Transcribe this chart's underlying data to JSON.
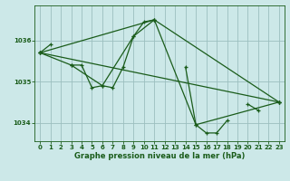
{
  "xlabel": "Graphe pression niveau de la mer (hPa)",
  "background_color": "#cce8e8",
  "grid_color": "#9bbfbf",
  "line_color": "#1a5c1a",
  "ylim": [
    1033.55,
    1036.85
  ],
  "xlim": [
    -0.5,
    23.5
  ],
  "yticks": [
    1034,
    1035,
    1036
  ],
  "xticks": [
    0,
    1,
    2,
    3,
    4,
    5,
    6,
    7,
    8,
    9,
    10,
    11,
    12,
    13,
    14,
    15,
    16,
    17,
    18,
    19,
    20,
    21,
    22,
    23
  ],
  "series0_x": [
    0,
    1,
    3,
    4,
    5,
    6,
    7,
    8,
    9,
    10,
    11,
    14,
    15,
    16,
    17,
    18,
    20,
    21,
    23
  ],
  "series0_y": [
    1035.7,
    1035.9,
    1035.4,
    1035.4,
    1034.85,
    1034.9,
    1034.85,
    1035.35,
    1036.1,
    1036.45,
    1036.5,
    1035.35,
    1033.95,
    1033.75,
    1033.75,
    1034.05,
    1034.45,
    1034.3,
    1034.5
  ],
  "series0_gaps_after": [
    1,
    3
  ],
  "series1_x": [
    0,
    3,
    6,
    9,
    11,
    15,
    23
  ],
  "series1_y": [
    1035.7,
    1035.4,
    1034.9,
    1036.1,
    1036.5,
    1033.95,
    1034.5
  ],
  "series2_x": [
    0,
    11,
    23
  ],
  "series2_y": [
    1035.7,
    1036.5,
    1034.5
  ],
  "series3_x": [
    0,
    23
  ],
  "series3_y": [
    1035.7,
    1034.5
  ],
  "xlabel_fontsize": 6,
  "tick_fontsize": 5,
  "linewidth": 0.9,
  "marker_size": 3
}
